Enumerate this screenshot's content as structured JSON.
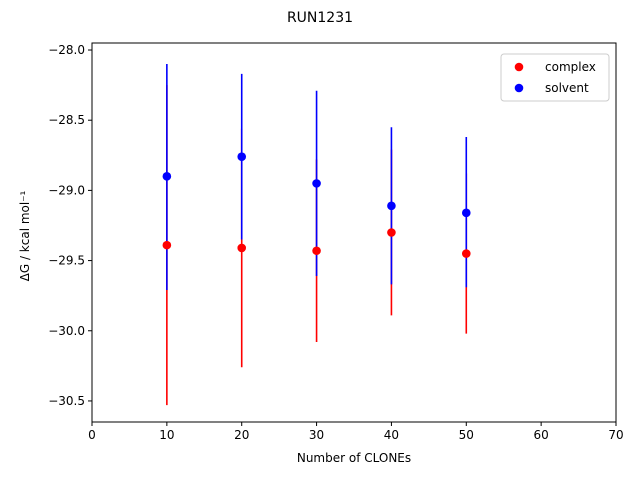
{
  "chart_data": {
    "type": "scatter",
    "title": "RUN1231",
    "xlabel": "Number of CLONEs",
    "ylabel": "ΔG / kcal mol⁻¹",
    "xlim": [
      0,
      70
    ],
    "ylim": [
      -30.65,
      -27.95
    ],
    "xticks": [
      0,
      10,
      20,
      30,
      40,
      50,
      60,
      70
    ],
    "xtick_labels": [
      "0",
      "10",
      "20",
      "30",
      "40",
      "50",
      "60",
      "70"
    ],
    "yticks": [
      -28.0,
      -28.5,
      -29.0,
      -29.5,
      -30.0,
      -30.5
    ],
    "ytick_labels": [
      "−28.0",
      "−28.5",
      "−29.0",
      "−29.5",
      "−30.0",
      "−30.5"
    ],
    "grid": false,
    "legend_position": "top-right",
    "series": [
      {
        "name": "complex",
        "color": "#ff0000",
        "x": [
          10,
          20,
          30,
          40,
          50
        ],
        "y": [
          -29.39,
          -29.41,
          -29.43,
          -29.3,
          -29.45
        ],
        "err_low": [
          -30.53,
          -30.26,
          -30.08,
          -29.89,
          -30.02
        ],
        "err_high": [
          -28.25,
          -28.56,
          -28.78,
          -28.71,
          -28.88
        ]
      },
      {
        "name": "solvent",
        "color": "#0000ff",
        "x": [
          10,
          20,
          30,
          40,
          50
        ],
        "y": [
          -28.9,
          -28.76,
          -28.95,
          -29.11,
          -29.16
        ],
        "err_low": [
          -29.71,
          -29.35,
          -29.61,
          -29.67,
          -29.69
        ],
        "err_high": [
          -28.1,
          -28.17,
          -28.29,
          -28.55,
          -28.62
        ]
      }
    ]
  }
}
